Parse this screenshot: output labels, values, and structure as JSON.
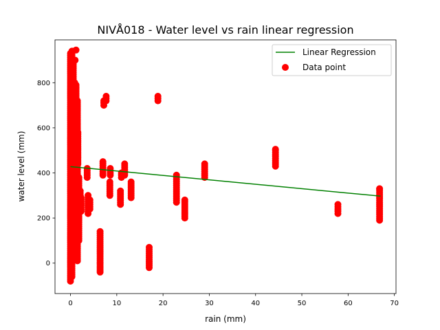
{
  "chart_data": {
    "type": "scatter",
    "title": "NIVÅ018 - Water level vs rain linear regression",
    "xlabel": "rain (mm)",
    "ylabel": "water level (mm)",
    "xlim": [
      -3.35,
      70.35
    ],
    "ylim": [
      -135,
      990
    ],
    "xticks": [
      0,
      10,
      20,
      30,
      40,
      50,
      60,
      70
    ],
    "yticks": [
      0,
      200,
      400,
      600,
      800
    ],
    "legend": {
      "placement": "top-right",
      "entries": [
        {
          "label": "Linear Regression",
          "kind": "line",
          "color": "#008000"
        },
        {
          "label": "Data point",
          "kind": "marker",
          "color": "#ff0000"
        }
      ]
    },
    "grid": false,
    "regression": {
      "name": "Linear Regression",
      "x": [
        0,
        67
      ],
      "y": [
        428,
        297
      ],
      "color": "#008000"
    },
    "points": {
      "name": "Data point",
      "color": "#ff0000",
      "columns": [
        {
          "x": 0,
          "y_min": -80,
          "y_max": 930
        },
        {
          "x": 0.3,
          "y_min": -60,
          "y_max": 940
        },
        {
          "x": 0.6,
          "y_min": 20,
          "y_max": 900
        },
        {
          "x": 0.9,
          "y_min": 80,
          "y_max": 800
        },
        {
          "x": 1.2,
          "y_min": 40,
          "y_max": 790
        },
        {
          "x": 1.5,
          "y_min": 10,
          "y_max": 720
        },
        {
          "x": 1.8,
          "y_min": 100,
          "y_max": 380
        },
        {
          "x": 2.1,
          "y_min": 240,
          "y_max": 320
        },
        {
          "x": 1.6,
          "y_min": 440,
          "y_max": 580
        },
        {
          "x": 2.3,
          "y_min": 230,
          "y_max": 290
        },
        {
          "x": 3.6,
          "y_min": 380,
          "y_max": 420
        },
        {
          "x": 3.8,
          "y_min": 220,
          "y_max": 300
        },
        {
          "x": 4.2,
          "y_min": 240,
          "y_max": 280
        },
        {
          "x": 6.4,
          "y_min": -40,
          "y_max": 140
        },
        {
          "x": 7.0,
          "y_min": 390,
          "y_max": 450
        },
        {
          "x": 7.2,
          "y_min": 700,
          "y_max": 720
        },
        {
          "x": 7.7,
          "y_min": 720,
          "y_max": 740
        },
        {
          "x": 8.5,
          "y_min": 300,
          "y_max": 360
        },
        {
          "x": 8.6,
          "y_min": 390,
          "y_max": 420
        },
        {
          "x": 10.8,
          "y_min": 260,
          "y_max": 320
        },
        {
          "x": 11.0,
          "y_min": 380,
          "y_max": 400
        },
        {
          "x": 11.7,
          "y_min": 390,
          "y_max": 440
        },
        {
          "x": 13.1,
          "y_min": 290,
          "y_max": 360
        },
        {
          "x": 17.0,
          "y_min": -20,
          "y_max": 70
        },
        {
          "x": 18.9,
          "y_min": 720,
          "y_max": 740
        },
        {
          "x": 22.9,
          "y_min": 270,
          "y_max": 390
        },
        {
          "x": 24.7,
          "y_min": 200,
          "y_max": 280
        },
        {
          "x": 29.0,
          "y_min": 380,
          "y_max": 440
        },
        {
          "x": 44.3,
          "y_min": 430,
          "y_max": 500
        },
        {
          "x": 57.8,
          "y_min": 220,
          "y_max": 260
        },
        {
          "x": 66.8,
          "y_min": 190,
          "y_max": 330
        }
      ],
      "singles": [
        {
          "x": 1.2,
          "y": 945
        },
        {
          "x": 1.0,
          "y": 900
        },
        {
          "x": 0.5,
          "y": 940
        },
        {
          "x": 66.8,
          "y": 330
        },
        {
          "x": 44.3,
          "y": 505
        },
        {
          "x": 1.7,
          "y": 270
        }
      ]
    }
  }
}
